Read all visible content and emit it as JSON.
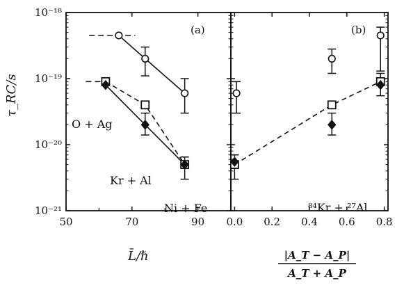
{
  "chart_data": {
    "type": "scatter",
    "y_scale": "log",
    "ylim": [
      1e-21,
      1e-18
    ],
    "ylabel": "τ_RC/s",
    "y_ticks": [
      {
        "value": 1e-21,
        "label": "10⁻²¹"
      },
      {
        "value": 1e-20,
        "label": "10⁻²⁰"
      },
      {
        "value": 1e-19,
        "label": "10⁻¹⁹"
      },
      {
        "value": 1e-18,
        "label": "10⁻¹⁸"
      }
    ],
    "panels": [
      {
        "label": "(a)",
        "xlabel": "L̄/ℏ",
        "xlim": [
          50,
          100
        ],
        "x_ticks": [
          {
            "value": 50,
            "label": "50"
          },
          {
            "value": 70,
            "label": "70"
          },
          {
            "value": 90,
            "label": "90"
          }
        ],
        "series": [
          {
            "marker": "open-circle",
            "line": "solid",
            "points": [
              {
                "x": 66,
                "y": 4.5e-19,
                "ylo": null,
                "yhi": null,
                "xerr": [
                  57,
                  71
                ]
              },
              {
                "x": 74,
                "y": 2e-19,
                "ylo": 1.1e-19,
                "yhi": 3e-19
              },
              {
                "x": 86,
                "y": 6e-20,
                "ylo": 3e-20,
                "yhi": 1e-19
              }
            ]
          },
          {
            "marker": "open-square",
            "line": "dashed",
            "points": [
              {
                "x": 62,
                "y": 9e-20,
                "xerr": [
                  56,
                  64
                ]
              },
              {
                "x": 74,
                "y": 4e-20
              },
              {
                "x": 86,
                "y": 5e-21
              }
            ]
          },
          {
            "marker": "filled-diamond",
            "line": "solid",
            "points": [
              {
                "x": 62,
                "y": 8e-20
              },
              {
                "x": 74,
                "y": 2e-20,
                "ylo": 1.4e-20,
                "yhi": 3e-20
              },
              {
                "x": 86,
                "y": 5e-21,
                "ylo": 3e-21,
                "yhi": 6.5e-21
              }
            ]
          }
        ],
        "annotations": [
          "O + Ag",
          "Kr + Al",
          "Ni + Fe"
        ]
      },
      {
        "label": "(b)",
        "xlabel_numerator": "|A_T − A_P|",
        "xlabel_denominator": "A_T + A_P",
        "xlim": [
          -0.02,
          0.82
        ],
        "x_ticks": [
          {
            "value": 0.0,
            "label": "0.0"
          },
          {
            "value": 0.2,
            "label": "0.2"
          },
          {
            "value": 0.4,
            "label": "0.4"
          },
          {
            "value": 0.6,
            "label": "0.6"
          },
          {
            "value": 0.8,
            "label": "0.8"
          }
        ],
        "series": [
          {
            "marker": "open-circle",
            "line": "none",
            "points": [
              {
                "x": 0.01,
                "y": 6e-20,
                "ylo": 3e-20,
                "yhi": 9e-20
              },
              {
                "x": 0.52,
                "y": 2e-19,
                "ylo": 1.2e-19,
                "yhi": 2.8e-19
              },
              {
                "x": 0.78,
                "y": 4.5e-19,
                "ylo": 1.3e-19,
                "yhi": 6e-19
              }
            ]
          },
          {
            "marker": "open-square",
            "line": "dashed",
            "points": [
              {
                "x": 0.0,
                "y": 5e-21
              },
              {
                "x": 0.52,
                "y": 4e-20
              },
              {
                "x": 0.78,
                "y": 9e-20
              }
            ]
          },
          {
            "marker": "filled-diamond",
            "line": "none",
            "points": [
              {
                "x": 0.0,
                "y": 5.5e-21,
                "ylo": 3e-21,
                "yhi": 7e-21
              },
              {
                "x": 0.52,
                "y": 2e-20,
                "ylo": 1.4e-20,
                "yhi": 3e-20
              },
              {
                "x": 0.78,
                "y": 8e-20,
                "ylo": 5.5e-20,
                "yhi": 1.2e-19
              }
            ]
          }
        ],
        "annotations": [
          "⁸⁴Kr + ²⁷Al"
        ]
      }
    ]
  }
}
